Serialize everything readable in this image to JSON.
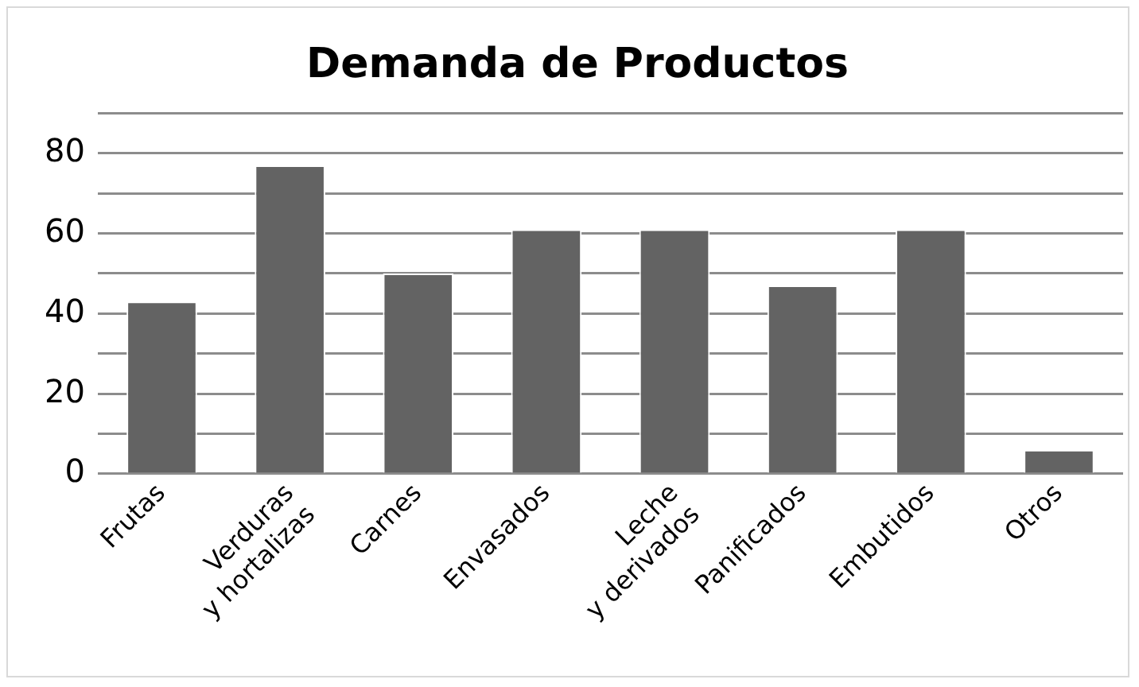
{
  "chart_data": {
    "type": "bar",
    "title": "Demanda de Productos",
    "categories": [
      "Frutas",
      "Verduras\ny hortalizas",
      "Carnes",
      "Envasados",
      "Leche\ny derivados",
      "Panificados",
      "Embutidos",
      "Otros"
    ],
    "values": [
      43,
      77,
      50,
      61,
      61,
      47,
      61,
      6
    ],
    "color": "#636363",
    "ylim": [
      0,
      90
    ],
    "yticks": [
      0,
      {
        "value": 10,
        "label": null
      },
      20,
      {
        "value": 30,
        "label": null
      },
      40,
      {
        "value": 50,
        "label": null
      },
      60,
      {
        "value": 70,
        "label": null
      },
      80,
      {
        "value": 90,
        "label": null
      }
    ],
    "grid": "y",
    "legend": false
  }
}
